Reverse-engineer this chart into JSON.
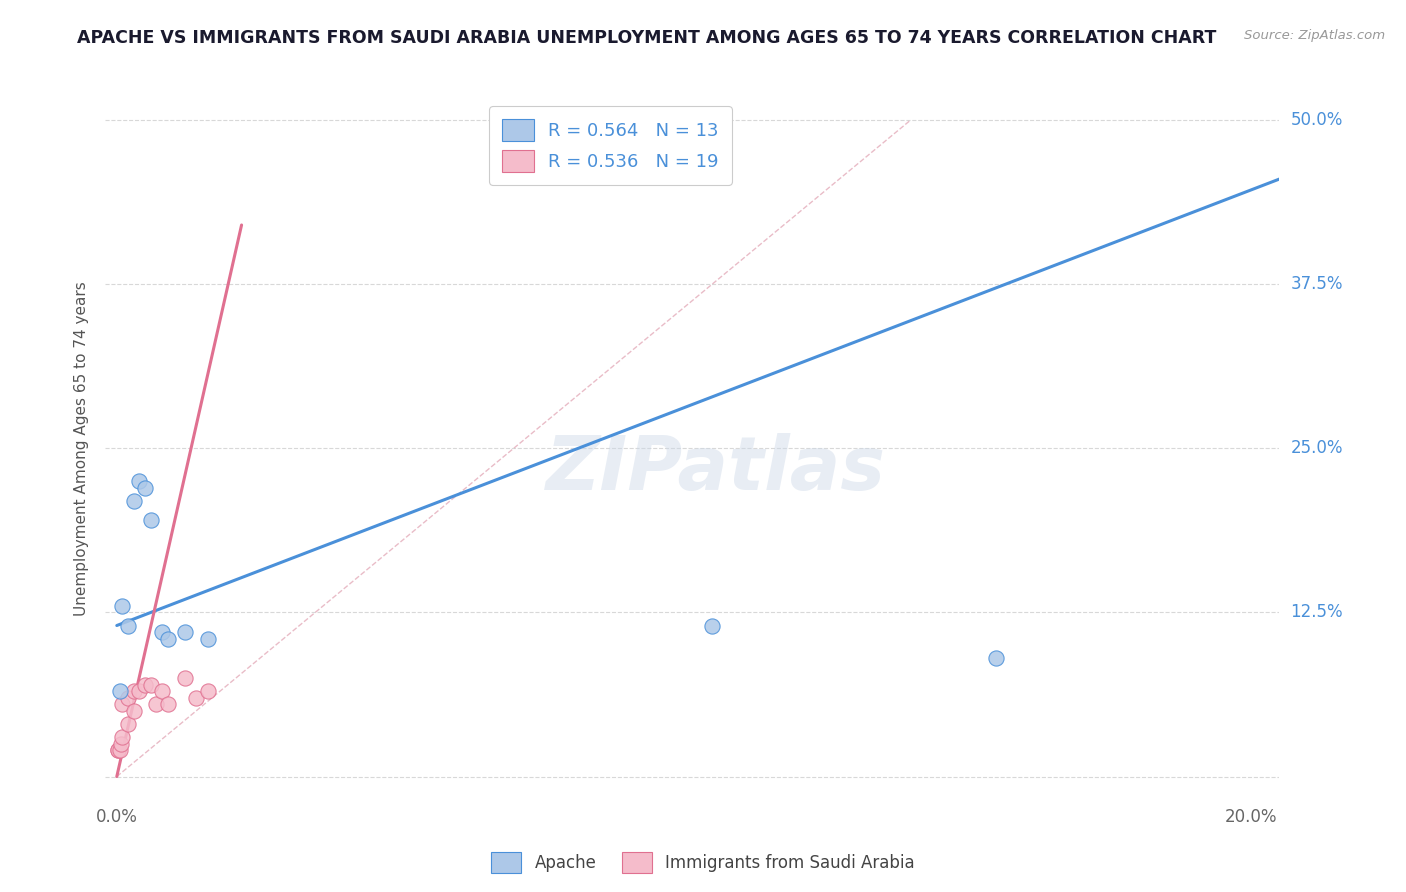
{
  "title": "APACHE VS IMMIGRANTS FROM SAUDI ARABIA UNEMPLOYMENT AMONG AGES 65 TO 74 YEARS CORRELATION CHART",
  "source": "Source: ZipAtlas.com",
  "ylabel": "Unemployment Among Ages 65 to 74 years",
  "xlim": [
    -0.002,
    0.205
  ],
  "ylim": [
    -0.02,
    0.52
  ],
  "xticks": [
    0.0,
    0.05,
    0.1,
    0.15,
    0.2
  ],
  "xtick_labels": [
    "0.0%",
    "",
    "",
    "",
    "20.0%"
  ],
  "yticks": [
    0.0,
    0.125,
    0.25,
    0.375,
    0.5
  ],
  "apache_color": "#adc8e8",
  "saudi_color": "#f5bccb",
  "apache_line_color": "#4a90d9",
  "saudi_line_color": "#e07090",
  "apache_R": 0.564,
  "apache_N": 13,
  "saudi_R": 0.536,
  "saudi_N": 19,
  "watermark": "ZIPatlas",
  "apache_scatter_x": [
    0.0005,
    0.001,
    0.002,
    0.003,
    0.004,
    0.005,
    0.006,
    0.008,
    0.009,
    0.012,
    0.016,
    0.105,
    0.155
  ],
  "apache_scatter_y": [
    0.065,
    0.13,
    0.115,
    0.21,
    0.225,
    0.22,
    0.195,
    0.11,
    0.105,
    0.11,
    0.105,
    0.115,
    0.09
  ],
  "saudi_scatter_x": [
    0.0002,
    0.0003,
    0.0005,
    0.0008,
    0.001,
    0.001,
    0.002,
    0.002,
    0.003,
    0.003,
    0.004,
    0.005,
    0.006,
    0.007,
    0.008,
    0.009,
    0.012,
    0.014,
    0.016
  ],
  "saudi_scatter_y": [
    0.02,
    0.02,
    0.02,
    0.025,
    0.03,
    0.055,
    0.04,
    0.06,
    0.05,
    0.065,
    0.065,
    0.07,
    0.07,
    0.055,
    0.065,
    0.055,
    0.075,
    0.06,
    0.065
  ],
  "apache_trend_x": [
    0.0,
    0.205
  ],
  "apache_trend_y": [
    0.115,
    0.455
  ],
  "saudi_trend_x": [
    0.0,
    0.022
  ],
  "saudi_trend_y": [
    0.0,
    0.42
  ],
  "dashed_line_x": [
    0.0,
    0.14
  ],
  "dashed_line_y": [
    0.0,
    0.5
  ],
  "background_color": "#ffffff",
  "grid_color": "#d8d8d8",
  "title_color": "#1a1a2e",
  "axis_label_color": "#4a90d9",
  "tick_color": "#666666"
}
